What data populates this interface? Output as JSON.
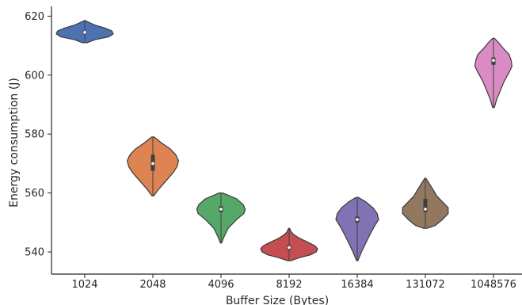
{
  "chart_data": {
    "type": "violin",
    "xlabel": "Buffer Size (Bytes)",
    "ylabel": "Energy consumption (J)",
    "ylim": [
      533,
      623
    ],
    "yticks": [
      540,
      560,
      580,
      600,
      620
    ],
    "grid": false,
    "categories": [
      "1024",
      "2048",
      "4096",
      "8192",
      "16384",
      "131072",
      "1048576"
    ],
    "series": [
      {
        "category": "1024",
        "color": "#4c72b0",
        "min": 611,
        "max": 618.5,
        "q1": 614,
        "median": 614.5,
        "q3": 615,
        "shape": [
          [
            611,
            0.08
          ],
          [
            612,
            0.35
          ],
          [
            613,
            0.85
          ],
          [
            614,
            1.0
          ],
          [
            615,
            0.95
          ],
          [
            616,
            0.7
          ],
          [
            617,
            0.35
          ],
          [
            618,
            0.12
          ],
          [
            618.5,
            0.02
          ]
        ]
      },
      {
        "category": "2048",
        "color": "#dd8452",
        "min": 559,
        "max": 579,
        "q1": 567.5,
        "median": 570,
        "q3": 573,
        "shape": [
          [
            559,
            0.03
          ],
          [
            561,
            0.18
          ],
          [
            564,
            0.45
          ],
          [
            567,
            0.72
          ],
          [
            569,
            0.85
          ],
          [
            571,
            0.9
          ],
          [
            573,
            0.8
          ],
          [
            575,
            0.6
          ],
          [
            577,
            0.3
          ],
          [
            579,
            0.04
          ]
        ]
      },
      {
        "category": "4096",
        "color": "#55a868",
        "min": 543,
        "max": 560,
        "q1": 553.5,
        "median": 554.5,
        "q3": 555.5,
        "shape": [
          [
            543,
            0.02
          ],
          [
            545,
            0.1
          ],
          [
            548,
            0.25
          ],
          [
            551,
            0.55
          ],
          [
            553,
            0.8
          ],
          [
            554.5,
            0.85
          ],
          [
            556,
            0.78
          ],
          [
            558,
            0.55
          ],
          [
            560,
            0.06
          ]
        ]
      },
      {
        "category": "8192",
        "color": "#c44e52",
        "min": 537,
        "max": 548,
        "q1": 540.8,
        "median": 541.5,
        "q3": 542.3,
        "shape": [
          [
            537,
            0.05
          ],
          [
            538,
            0.35
          ],
          [
            539,
            0.75
          ],
          [
            540,
            0.95
          ],
          [
            541,
            1.0
          ],
          [
            542,
            0.92
          ],
          [
            543,
            0.72
          ],
          [
            544,
            0.5
          ],
          [
            545,
            0.3
          ],
          [
            546,
            0.15
          ],
          [
            547,
            0.06
          ],
          [
            548,
            0.02
          ]
        ]
      },
      {
        "category": "16384",
        "color": "#8172b3",
        "min": 537,
        "max": 558.5,
        "q1": 550,
        "median": 551,
        "q3": 552,
        "shape": [
          [
            537,
            0.02
          ],
          [
            540,
            0.15
          ],
          [
            543,
            0.3
          ],
          [
            546,
            0.45
          ],
          [
            549,
            0.62
          ],
          [
            551,
            0.75
          ],
          [
            553,
            0.7
          ],
          [
            555,
            0.55
          ],
          [
            557,
            0.3
          ],
          [
            558.5,
            0.04
          ]
        ]
      },
      {
        "category": "131072",
        "color": "#937860",
        "min": 548,
        "max": 565,
        "q1": 553.5,
        "median": 554.5,
        "q3": 558,
        "shape": [
          [
            548,
            0.06
          ],
          [
            549,
            0.35
          ],
          [
            551,
            0.6
          ],
          [
            553,
            0.8
          ],
          [
            555,
            0.8
          ],
          [
            557,
            0.6
          ],
          [
            559,
            0.4
          ],
          [
            561,
            0.28
          ],
          [
            563,
            0.15
          ],
          [
            565,
            0.02
          ]
        ]
      },
      {
        "category": "1048576",
        "color": "#da8bc3",
        "min": 589,
        "max": 612.5,
        "q1": 603.5,
        "median": 605,
        "q3": 606,
        "shape": [
          [
            589,
            0.03
          ],
          [
            592,
            0.12
          ],
          [
            595,
            0.25
          ],
          [
            598,
            0.38
          ],
          [
            601,
            0.55
          ],
          [
            603,
            0.65
          ],
          [
            605,
            0.62
          ],
          [
            607,
            0.55
          ],
          [
            609,
            0.35
          ],
          [
            611,
            0.18
          ],
          [
            612.5,
            0.03
          ]
        ]
      }
    ]
  }
}
